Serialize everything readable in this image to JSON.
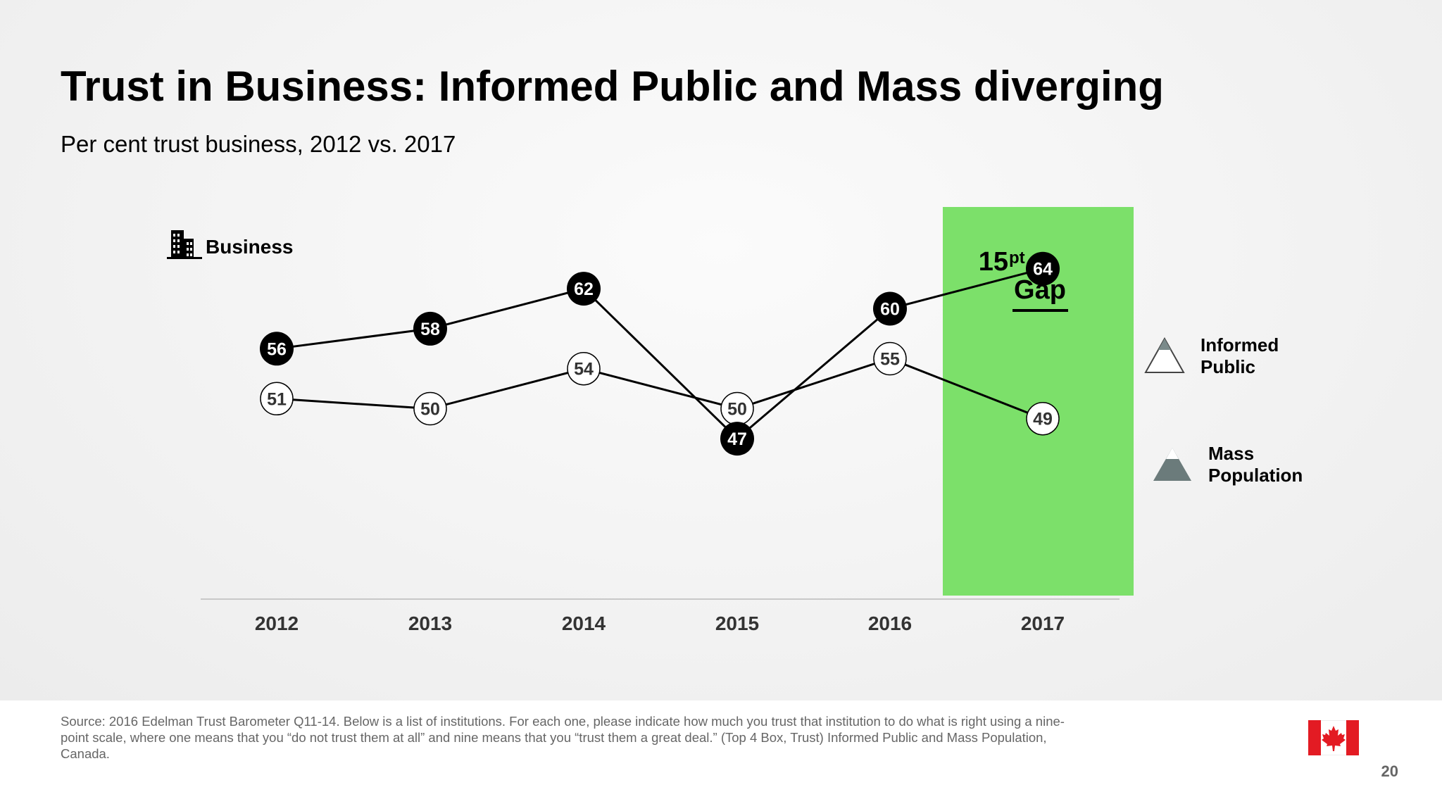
{
  "slide": {
    "title": "Trust in Business: Informed Public and Mass diverging",
    "subtitle": "Per cent trust business, 2012 vs. 2017",
    "category_label": "Business",
    "category_icon": "building-icon",
    "source": "Source: 2016 Edelman Trust Barometer Q11-14. Below is a list of institutions. For each one, please indicate how much you trust that institution to do what is right using a nine-point scale, where one means that you “do not trust them at all” and nine means that you “trust them a great deal.” (Top 4 Box, Trust) Informed Public and Mass Population, Canada.",
    "page_number": "20",
    "flag_icon": "canada-flag-icon"
  },
  "chart_data": {
    "type": "line",
    "categories": [
      "2012",
      "2013",
      "2014",
      "2015",
      "2016",
      "2017"
    ],
    "series": [
      {
        "name": "Informed Public",
        "values": [
          56,
          58,
          62,
          47,
          60,
          64
        ],
        "marker": "filled-black-circle",
        "legend_icon": "outline-triangle-icon"
      },
      {
        "name": "Mass Population",
        "values": [
          51,
          50,
          54,
          50,
          55,
          49
        ],
        "marker": "white-circle",
        "legend_icon": "gray-triangle-icon"
      }
    ],
    "highlight": {
      "category": "2017",
      "value": "15",
      "superscript": "pt",
      "label": "Gap",
      "color": "#7ce06a"
    },
    "legend_placement": "right",
    "grid": false,
    "line_color": "#000000"
  }
}
